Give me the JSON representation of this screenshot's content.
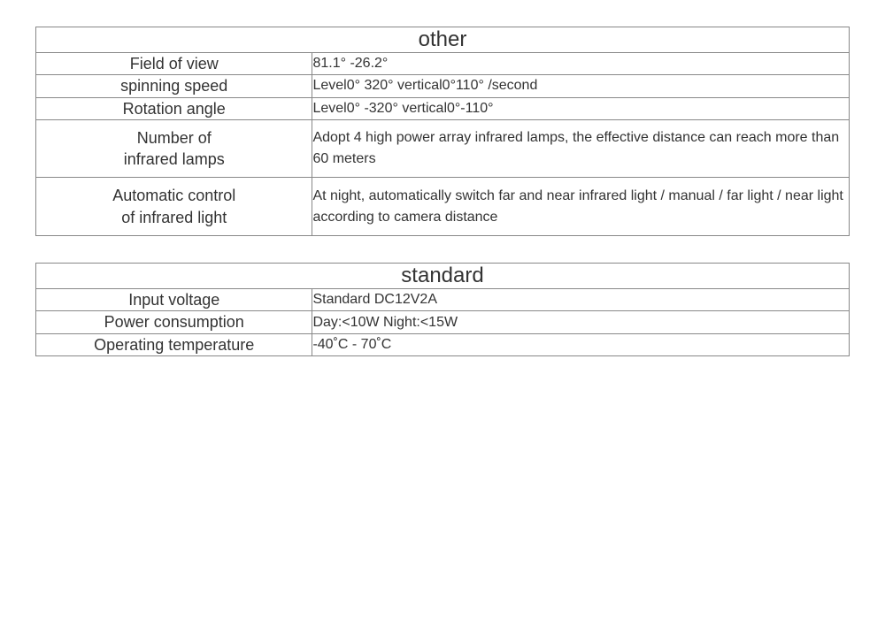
{
  "tables": [
    {
      "title": "other",
      "rows": [
        {
          "label": "Field of view",
          "value": "81.1° -26.2°",
          "tight": false
        },
        {
          "label": "spinning speed",
          "value": "Level0° 320° vertical0°110° /second",
          "tight": false
        },
        {
          "label": "Rotation angle",
          "value": "Level0° -320° vertical0°-110°",
          "tight": false
        },
        {
          "label": "Number of\ninfrared lamps",
          "value": "Adopt 4 high power array infrared lamps, the effective distance can reach more than 60 meters",
          "tight": true
        },
        {
          "label": "Automatic control\nof infrared light",
          "value": "At night, automatically switch far and near infrared light / manual / far light / near light according to camera distance",
          "tight": true
        }
      ]
    },
    {
      "title": "standard",
      "rows": [
        {
          "label": "Input voltage",
          "value": "Standard DC12V2A",
          "tight": false
        },
        {
          "label": "Power consumption",
          "value": "Day:<10W Night:<15W",
          "tight": false
        },
        {
          "label": "Operating temperature",
          "value": "-40˚C - 70˚C",
          "tight": false
        }
      ]
    }
  ],
  "styling": {
    "border_color": "#888888",
    "text_color": "#333333",
    "background_color": "#ffffff",
    "header_fontsize": 24,
    "label_fontsize": 18,
    "value_fontsize": 16,
    "label_column_width_pct": 34,
    "value_column_width_pct": 66
  }
}
